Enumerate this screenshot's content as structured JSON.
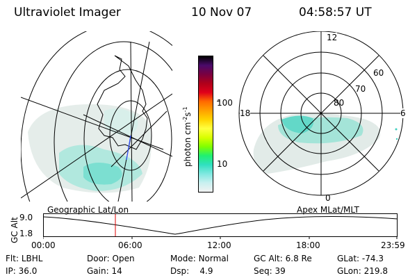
{
  "header": {
    "instrument": "Ultraviolet Imager",
    "date": "10 Nov 07",
    "time": "04:58:57 UT"
  },
  "geographic_panel": {
    "title": "Geographic Lat/Lon"
  },
  "colorbar": {
    "unit_label": "photon cm-2s-1",
    "unit_parts": {
      "base": "photon cm",
      "exp1": "-2",
      "mid": "s",
      "exp2": "-1"
    },
    "ticks": [
      "100",
      "10"
    ],
    "colors": [
      "#000000",
      "#4a0a6a",
      "#7a0040",
      "#b0001a",
      "#e0001a",
      "#ff6a00",
      "#ffa000",
      "#ffd400",
      "#ffff40",
      "#d8ff00",
      "#80ff00",
      "#20f070",
      "#30e0c0",
      "#80e8e0",
      "#c8f0f0",
      "#f2f2f2"
    ]
  },
  "apex_panel": {
    "title": "Apex  MLat/MLT",
    "mlt_labels": {
      "top": "12",
      "left": "18",
      "right": "6",
      "bottom": "0"
    },
    "lat_labels": [
      "60",
      "70",
      "80"
    ]
  },
  "altitude_plot": {
    "ylabel": "GC Alt",
    "y_ticks": [
      "9.0",
      "1.8"
    ],
    "x_ticks": [
      "00:00",
      "06:00",
      "12:00",
      "18:00",
      "23:59"
    ]
  },
  "status": {
    "flt": {
      "label": "Flt:",
      "value": "LBHL"
    },
    "ip": {
      "label": "IP:",
      "value": "36.0"
    },
    "door": {
      "label": "Door:",
      "value": "Open"
    },
    "gain": {
      "label": "Gain:",
      "value": "14"
    },
    "mode": {
      "label": "Mode:",
      "value": "Normal"
    },
    "dsp": {
      "label": "Dsp:",
      "value": "4.9"
    },
    "gcalt": {
      "label": "GC Alt:",
      "value": "6.8 Re"
    },
    "seq": {
      "label": "Seq:",
      "value": "39"
    },
    "glat": {
      "label": "GLat:",
      "value": "-74.3"
    },
    "glon": {
      "label": "GLon:",
      "value": "219.8"
    }
  }
}
